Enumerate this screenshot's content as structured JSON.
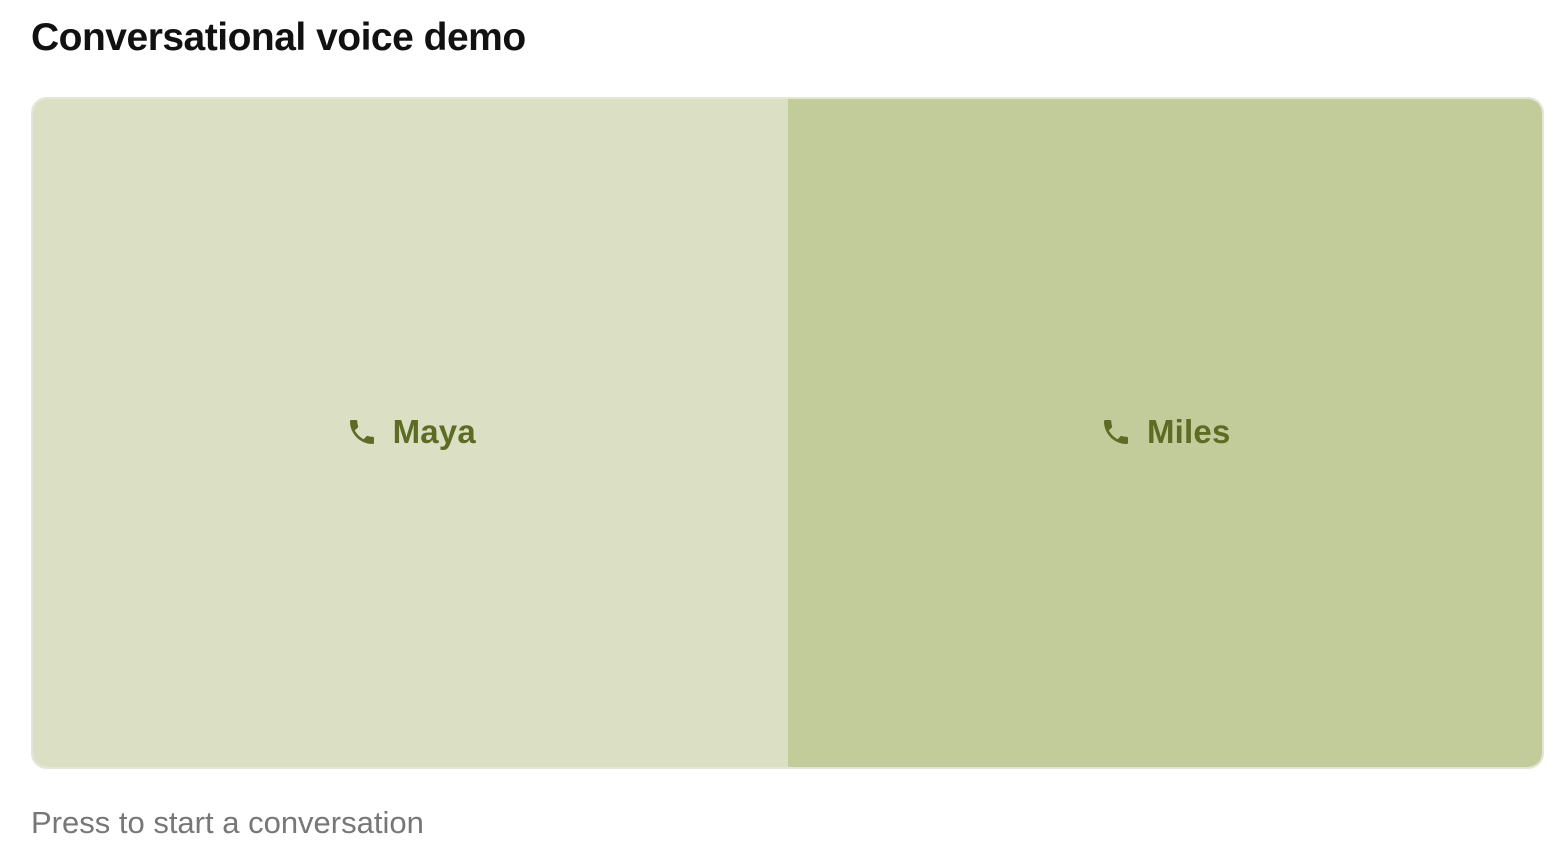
{
  "header": {
    "title": "Conversational voice demo"
  },
  "voices": [
    {
      "label": "Maya",
      "icon": "phone-icon"
    },
    {
      "label": "Miles",
      "icon": "phone-icon"
    }
  ],
  "footer": {
    "hint": "Press to start a conversation"
  },
  "colors": {
    "maya_bg": "#dbe0c4",
    "miles_bg": "#c2cc9b",
    "accent": "#5d6b24"
  }
}
